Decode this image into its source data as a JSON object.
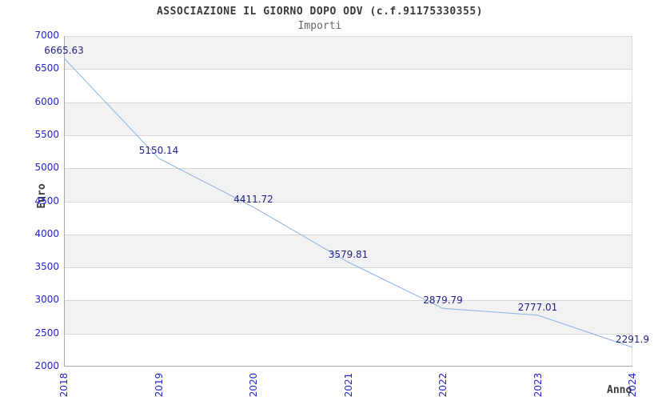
{
  "header": {
    "title": "ASSOCIAZIONE IL GIORNO DOPO ODV (c.f.91175330355)",
    "subtitle": "Importi"
  },
  "axes": {
    "y_label": "Euro",
    "x_label": "Anno"
  },
  "chart_data": {
    "type": "line",
    "title": "ASSOCIAZIONE IL GIORNO DOPO ODV (c.f.91175330355)",
    "subtitle": "Importi",
    "xlabel": "Anno",
    "ylabel": "Euro",
    "categories": [
      "2018",
      "2019",
      "2020",
      "2021",
      "2022",
      "2023",
      "2024"
    ],
    "series": [
      {
        "name": "Importi",
        "values": [
          6665.63,
          5150.14,
          4411.72,
          3579.81,
          2879.79,
          2777.01,
          2291.9
        ]
      }
    ],
    "point_labels": [
      "6665.63",
      "5150.14",
      "4411.72",
      "3579.81",
      "2879.79",
      "2777.01",
      "2291.9"
    ],
    "ylim": [
      2000,
      7000
    ],
    "ytick_step": 500,
    "ytick_labels": [
      "2000",
      "2500",
      "3000",
      "3500",
      "4000",
      "4500",
      "5000",
      "5500",
      "6000",
      "6500",
      "7000"
    ],
    "grid": true,
    "alternating_bands": true,
    "legend_position": "none",
    "markers": "none"
  },
  "colors": {
    "line": "#8cb2e2",
    "point_label": "#1f1f8c",
    "tick_label": "#2424cc",
    "band": "#f2f2f2",
    "gridline": "#d6d6d6",
    "frame": "#dcdcdc",
    "spine": "#aaaaaa",
    "title": "#3a3a3a",
    "subtitle": "#666666",
    "background": "#ffffff"
  }
}
